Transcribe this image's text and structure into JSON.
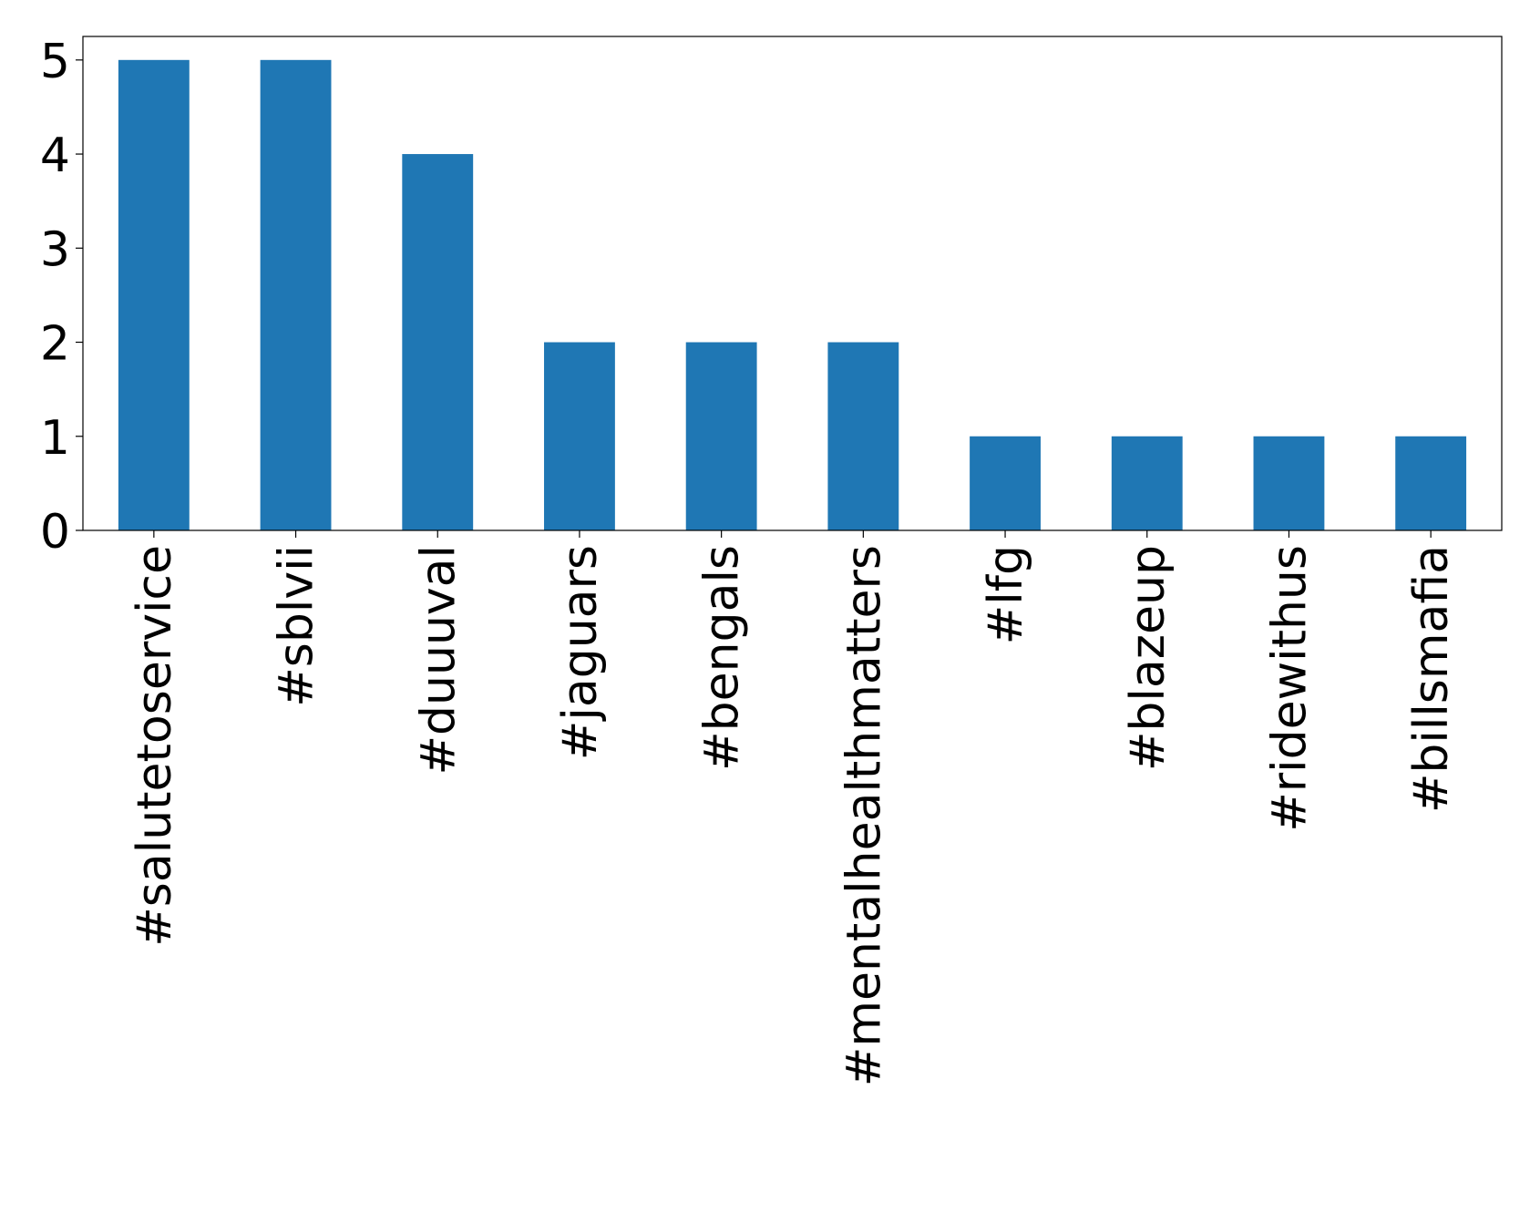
{
  "chart_data": {
    "type": "bar",
    "categories": [
      "#salutetoservice",
      "#sblvii",
      "#duuuval",
      "#jaguars",
      "#bengals",
      "#mentalhealthmatters",
      "#lfg",
      "#blazeup",
      "#ridewithus",
      "#billsmafia"
    ],
    "values": [
      5,
      5,
      4,
      2,
      2,
      2,
      1,
      1,
      1,
      1
    ],
    "color": "#1f77b4",
    "ylim": [
      0,
      5.25
    ],
    "yticks": [
      0,
      1,
      2,
      3,
      4,
      5
    ],
    "grid": false
  }
}
